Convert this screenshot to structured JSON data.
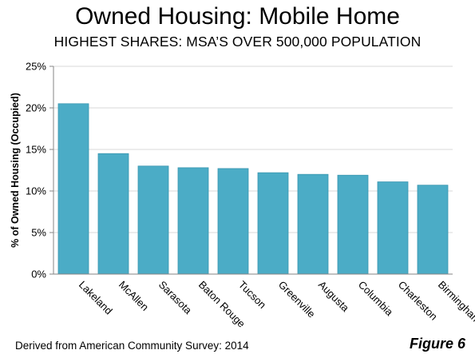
{
  "header": {
    "title": "Owned Housing: Mobile Home",
    "subtitle": "HIGHEST SHARES: MSA’S OVER 500,000 POPULATION"
  },
  "footer": {
    "source": "Derived from American Community Survey: 2014",
    "figure": "Figure 6"
  },
  "chart_data": {
    "type": "bar",
    "title": "Owned Housing: Mobile Home",
    "subtitle": "HIGHEST SHARES: MSA’S OVER 500,000 POPULATION",
    "xlabel": "",
    "ylabel": "% of Owned Housing (Occupied)",
    "categories": [
      "Lakeland",
      "McAllen",
      "Sarasota",
      "Baton Rouge",
      "Tucson",
      "Greenville",
      "Augusta",
      "Columbia",
      "Charleston",
      "Birmingham"
    ],
    "values": [
      20.5,
      14.5,
      13.0,
      12.8,
      12.7,
      12.2,
      12.0,
      11.9,
      11.1,
      10.7
    ],
    "ylim": [
      0,
      25
    ],
    "yticks": [
      0,
      5,
      10,
      15,
      20,
      25
    ],
    "ytick_labels": [
      "0%",
      "5%",
      "10%",
      "15%",
      "20%",
      "25%"
    ],
    "grid": true,
    "legend": "none",
    "bar_color": "#4bacc6",
    "bar_edge_color": "#3a97b0",
    "grid_color": "#d9d9d9"
  }
}
